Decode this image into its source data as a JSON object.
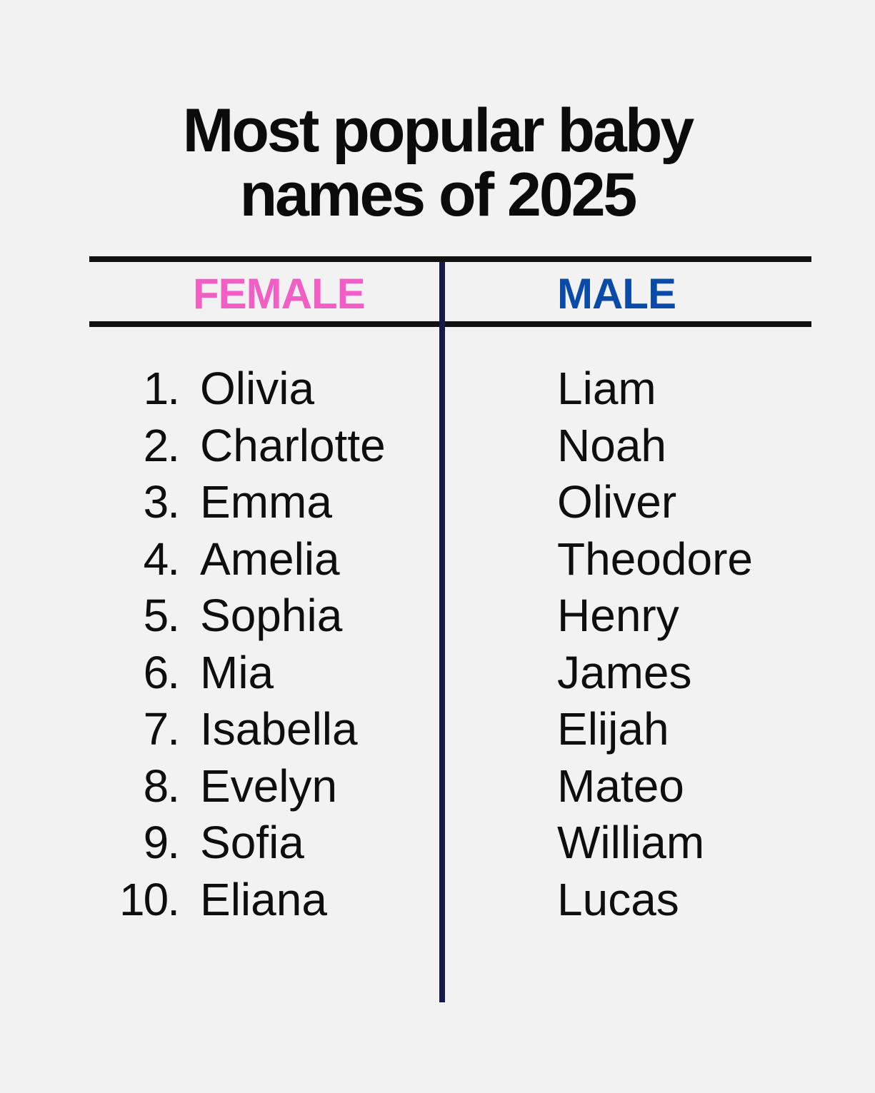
{
  "title": {
    "line1": "Most popular baby",
    "line2": "names of 2025"
  },
  "headers": {
    "female": "FEMALE",
    "male": "MALE"
  },
  "colors": {
    "female": "#f25fc4",
    "male": "#0a4aa8",
    "divider": "#161a4a"
  },
  "female": [
    {
      "rank": "1.",
      "name": "Olivia"
    },
    {
      "rank": "2.",
      "name": "Charlotte"
    },
    {
      "rank": "3.",
      "name": "Emma"
    },
    {
      "rank": "4.",
      "name": "Amelia"
    },
    {
      "rank": "5.",
      "name": "Sophia"
    },
    {
      "rank": "6.",
      "name": "Mia"
    },
    {
      "rank": "7.",
      "name": "Isabella"
    },
    {
      "rank": "8.",
      "name": "Evelyn"
    },
    {
      "rank": "9.",
      "name": "Sofia"
    },
    {
      "rank": "10.",
      "name": "Eliana"
    }
  ],
  "male": [
    "Liam",
    "Noah",
    "Oliver",
    "Theodore",
    "Henry",
    "James",
    "Elijah",
    "Mateo",
    "William",
    "Lucas"
  ]
}
